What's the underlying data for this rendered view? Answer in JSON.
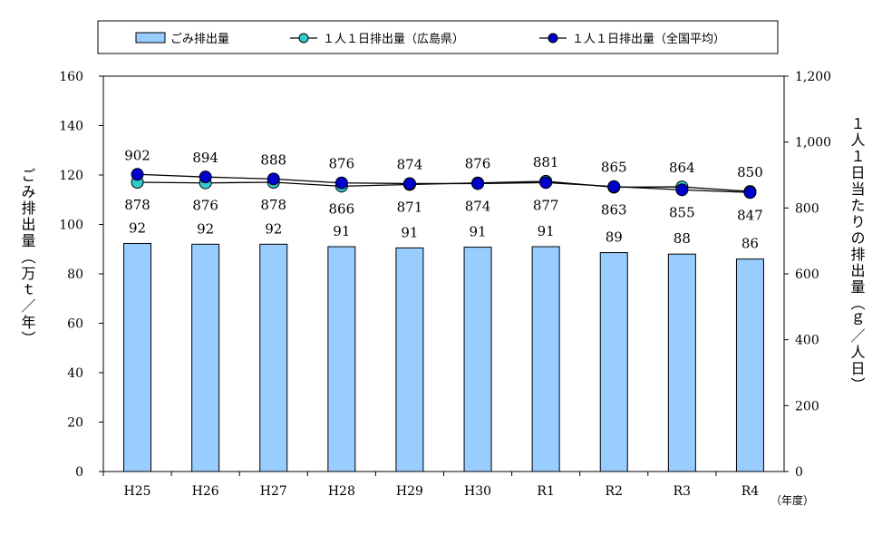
{
  "chart_data": {
    "type": "bar",
    "categories": [
      "H25",
      "H26",
      "H27",
      "H28",
      "H29",
      "H30",
      "R1",
      "R2",
      "R3",
      "R4"
    ],
    "x_unit": "（年度）",
    "ylabel_left": "ごみ排出量（万ｔ／年）",
    "ylabel_right": "１人１日当たりの排出量（ｇ／人日）",
    "ylim_left": [
      0,
      160
    ],
    "ylim_right": [
      0,
      1200
    ],
    "yticks_left": [
      "0",
      "20",
      "40",
      "60",
      "80",
      "100",
      "120",
      "140",
      "160"
    ],
    "yticks_right": [
      "0",
      "200",
      "400",
      "600",
      "800",
      "1,000",
      "1,200"
    ],
    "grid": false,
    "legend_position": "top",
    "series": [
      {
        "name": "ごみ排出量",
        "type": "bar",
        "axis": "left",
        "color": "#99ccff",
        "values": [
          92.3,
          92.0,
          92.0,
          91.0,
          90.5,
          90.8,
          91.0,
          88.6,
          88.0,
          86.0
        ],
        "labels": [
          "92",
          "92",
          "92",
          "91",
          "91",
          "91",
          "91",
          "89",
          "88",
          "86"
        ]
      },
      {
        "name": "１人１日排出量（広島県）",
        "type": "line",
        "axis": "right",
        "color": "#33cccc",
        "values": [
          878,
          876,
          878,
          866,
          871,
          876,
          881,
          863,
          864,
          850
        ],
        "labels": [
          "878",
          "876",
          "878",
          "866",
          "871",
          "876",
          "881",
          "863",
          "864",
          "850"
        ]
      },
      {
        "name": "１人１日排出量（全国平均）",
        "type": "line",
        "axis": "right",
        "color": "#0000cc",
        "values": [
          902,
          894,
          888,
          876,
          874,
          874,
          877,
          865,
          855,
          847
        ],
        "labels": [
          "902",
          "894",
          "888",
          "876",
          "874",
          "874",
          "877",
          "865",
          "855",
          "847"
        ]
      }
    ]
  }
}
